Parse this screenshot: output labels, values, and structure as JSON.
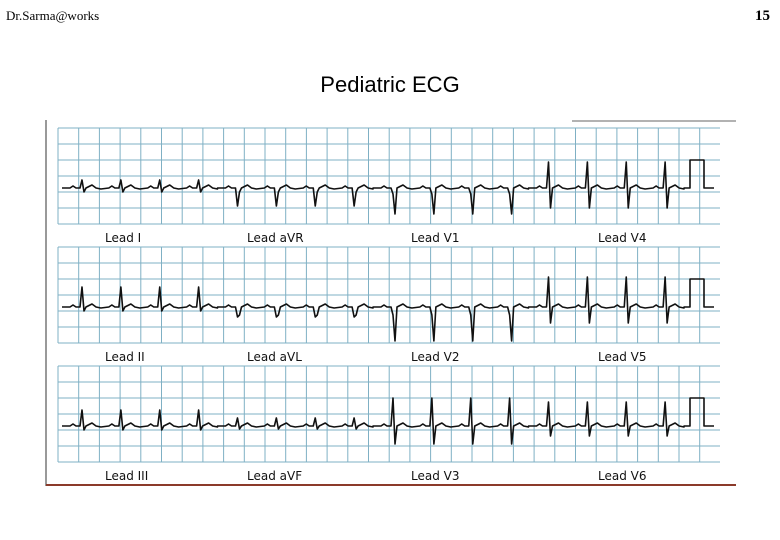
{
  "header": {
    "author": "Dr.Sarma@works",
    "page_number": "15"
  },
  "title": "Pediatric ECG",
  "figure": {
    "rows": [
      [
        "Lead I",
        "Lead aVR",
        "Lead V1",
        "Lead V4"
      ],
      [
        "Lead II",
        "Lead aVL",
        "Lead V2",
        "Lead V5"
      ],
      [
        "Lead III",
        "Lead aVF",
        "Lead V3",
        "Lead V6"
      ]
    ]
  }
}
